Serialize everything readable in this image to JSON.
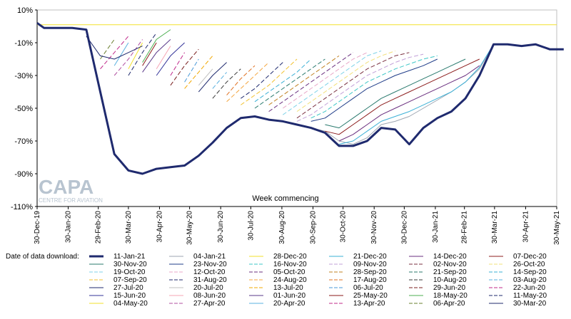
{
  "chart_data": {
    "type": "line",
    "xlabel": "Week commencing",
    "ylabel": "",
    "ylim": [
      -110,
      10
    ],
    "y_ticks": [
      "10%",
      "-10%",
      "-30%",
      "-50%",
      "-70%",
      "-90%",
      "-110%"
    ],
    "y_tick_values": [
      10,
      -10,
      -30,
      -50,
      -70,
      -90,
      -110
    ],
    "x_range": [
      "2019-12-30",
      "2021-05-31"
    ],
    "x_ticks": [
      "30-Dec-19",
      "30-Jan-20",
      "29-Feb-20",
      "30-Mar-20",
      "30-Apr-20",
      "30-May-20",
      "30-Jun-20",
      "30-Jul-20",
      "30-Aug-20",
      "30-Sep-20",
      "30-Oct-20",
      "30-Nov-20",
      "30-Dec-20",
      "30-Jan-21",
      "28-Feb-21",
      "30-Mar-21",
      "30-Apr-21",
      "30-May-21"
    ],
    "x_tick_dates": [
      "2019-12-30",
      "2020-01-30",
      "2020-02-29",
      "2020-03-30",
      "2020-04-30",
      "2020-05-30",
      "2020-06-30",
      "2020-07-30",
      "2020-08-30",
      "2020-09-30",
      "2020-10-30",
      "2020-11-30",
      "2020-12-30",
      "2021-01-30",
      "2021-02-28",
      "2021-03-30",
      "2021-04-30",
      "2021-05-31"
    ],
    "grid": false,
    "legend_title": "Date of data download:",
    "legend_position": "bottom",
    "logo_text": "CAPA",
    "logo_subtext": "CENTRE FOR AVIATION",
    "series": [
      {
        "name": "11-Jan-21",
        "color": "#1f2a6e",
        "dash": "solid",
        "width": 3,
        "x": [
          "2019-12-30",
          "2020-01-06",
          "2020-01-20",
          "2020-02-03",
          "2020-02-17",
          "2020-03-02",
          "2020-03-16",
          "2020-03-30",
          "2020-04-13",
          "2020-04-27",
          "2020-05-11",
          "2020-05-25",
          "2020-06-08",
          "2020-06-22",
          "2020-07-06",
          "2020-07-20",
          "2020-08-03",
          "2020-08-17",
          "2020-08-31",
          "2020-09-14",
          "2020-09-28",
          "2020-10-12",
          "2020-10-26",
          "2020-11-09",
          "2020-11-23",
          "2020-12-07",
          "2020-12-21",
          "2021-01-04",
          "2021-01-18",
          "2021-02-01",
          "2021-02-15",
          "2021-03-01",
          "2021-03-15",
          "2021-03-29",
          "2021-04-12",
          "2021-04-26",
          "2021-05-10",
          "2021-05-24",
          "2021-06-07"
        ],
        "y": [
          2,
          -1,
          -1,
          -1,
          -2,
          -40,
          -78,
          -88,
          -90,
          -87,
          -86,
          -85,
          -79,
          -71,
          -62,
          -56,
          -55,
          -57,
          -58,
          -60,
          -62,
          -65,
          -73,
          -73,
          -70,
          -62,
          -63,
          -72,
          -62,
          -56,
          -52,
          -44,
          -30,
          -11,
          -11,
          -12,
          -11,
          -14,
          -14
        ]
      },
      {
        "name": "04-Jan-21",
        "color": "#9ea6b2",
        "dash": "solid",
        "width": 1,
        "x": [
          "2020-09-28",
          "2020-10-12",
          "2020-10-26",
          "2020-11-09",
          "2020-11-23",
          "2020-12-07",
          "2020-12-21",
          "2021-01-04",
          "2021-01-18",
          "2021-02-01",
          "2021-02-15",
          "2021-03-01",
          "2021-03-15",
          "2021-03-29",
          "2021-04-12",
          "2021-04-26"
        ],
        "y": [
          -62,
          -64,
          -70,
          -72,
          -68,
          -60,
          -58,
          -55,
          -50,
          -45,
          -40,
          -34,
          -26,
          -11,
          -11,
          -12
        ]
      },
      {
        "name": "28-Dec-20",
        "color": "#f2e12b",
        "dash": "solid",
        "width": 1,
        "x": [
          "2019-12-30",
          "2020-06-01",
          "2020-12-01",
          "2021-05-31"
        ],
        "y": [
          1,
          1,
          1,
          1
        ]
      },
      {
        "name": "21-Dec-20",
        "color": "#3bb0d6",
        "dash": "solid",
        "width": 1,
        "x": [
          "2020-10-26",
          "2020-11-09",
          "2020-11-23",
          "2020-12-07",
          "2020-12-21",
          "2021-01-04",
          "2021-01-18",
          "2021-02-01",
          "2021-02-15",
          "2021-03-01",
          "2021-03-15",
          "2021-03-29",
          "2021-04-12"
        ],
        "y": [
          -72,
          -70,
          -64,
          -58,
          -55,
          -52,
          -48,
          -44,
          -40,
          -34,
          -25,
          -11,
          -11
        ]
      },
      {
        "name": "14-Dec-20",
        "color": "#6a2f7f",
        "dash": "solid",
        "width": 1,
        "x": [
          "2020-10-26",
          "2020-11-09",
          "2020-11-23",
          "2020-12-07",
          "2020-12-21",
          "2021-01-04",
          "2021-01-18",
          "2021-02-01",
          "2021-02-15",
          "2021-03-01",
          "2021-03-15"
        ],
        "y": [
          -70,
          -66,
          -60,
          -54,
          -50,
          -46,
          -42,
          -38,
          -34,
          -30,
          -24
        ]
      },
      {
        "name": "07-Dec-20",
        "color": "#8c1c1c",
        "dash": "solid",
        "width": 1,
        "x": [
          "2020-10-12",
          "2020-10-26",
          "2020-11-09",
          "2020-11-23",
          "2020-12-07",
          "2020-12-21",
          "2021-01-04",
          "2021-01-18",
          "2021-02-01",
          "2021-02-15",
          "2021-03-01",
          "2021-03-15"
        ],
        "y": [
          -64,
          -66,
          -60,
          -54,
          -48,
          -44,
          -40,
          -36,
          -32,
          -28,
          -24,
          -20
        ]
      },
      {
        "name": "30-Nov-20",
        "color": "#2a7a6e",
        "dash": "solid",
        "width": 1,
        "x": [
          "2020-10-12",
          "2020-10-26",
          "2020-11-09",
          "2020-11-23",
          "2020-12-07",
          "2020-12-21",
          "2021-01-04",
          "2021-01-18",
          "2021-02-01",
          "2021-02-15",
          "2021-03-01"
        ],
        "y": [
          -60,
          -62,
          -56,
          -50,
          -44,
          -40,
          -36,
          -32,
          -28,
          -24,
          -20
        ]
      },
      {
        "name": "23-Nov-20",
        "color": "#1f3c88",
        "dash": "solid",
        "width": 1,
        "x": [
          "2020-09-28",
          "2020-10-12",
          "2020-10-26",
          "2020-11-09",
          "2020-11-23",
          "2020-12-07",
          "2020-12-21",
          "2021-01-04",
          "2021-01-18",
          "2021-02-01"
        ],
        "y": [
          -58,
          -56,
          -50,
          -44,
          -38,
          -34,
          -30,
          -27,
          -24,
          -20
        ]
      },
      {
        "name": "16-Nov-20",
        "color": "#3ec7c7",
        "dash": "dash",
        "width": 1,
        "x": [
          "2020-09-28",
          "2020-10-12",
          "2020-10-26",
          "2020-11-09",
          "2020-11-23",
          "2020-12-07",
          "2020-12-21",
          "2021-01-04",
          "2021-01-18",
          "2021-02-01"
        ],
        "y": [
          -56,
          -52,
          -46,
          -40,
          -34,
          -30,
          -26,
          -23,
          -20,
          -18
        ]
      },
      {
        "name": "09-Nov-20",
        "color": "#c2a0d8",
        "dash": "dash",
        "width": 1,
        "x": [
          "2020-09-14",
          "2020-09-28",
          "2020-10-12",
          "2020-10-26",
          "2020-11-09",
          "2020-11-23",
          "2020-12-07",
          "2020-12-21",
          "2021-01-04",
          "2021-01-18"
        ],
        "y": [
          -58,
          -54,
          -48,
          -42,
          -36,
          -30,
          -26,
          -22,
          -19,
          -17
        ]
      },
      {
        "name": "02-Nov-20",
        "color": "#7a3040",
        "dash": "dash",
        "width": 1,
        "x": [
          "2020-09-14",
          "2020-09-28",
          "2020-10-12",
          "2020-10-26",
          "2020-11-09",
          "2020-11-23",
          "2020-12-07",
          "2020-12-21",
          "2021-01-04"
        ],
        "y": [
          -56,
          -50,
          -44,
          -38,
          -32,
          -26,
          -22,
          -18,
          -16
        ]
      },
      {
        "name": "26-Oct-20",
        "color": "#f2e07a",
        "dash": "dash",
        "width": 1,
        "x": [
          "2020-09-14",
          "2020-09-28",
          "2020-10-12",
          "2020-10-26",
          "2020-11-09",
          "2020-11-23",
          "2020-12-07",
          "2020-12-21"
        ],
        "y": [
          -52,
          -46,
          -40,
          -34,
          -28,
          -22,
          -18,
          -15
        ]
      },
      {
        "name": "19-Oct-20",
        "color": "#7fd3e8",
        "dash": "dash",
        "width": 1,
        "x": [
          "2020-08-31",
          "2020-09-14",
          "2020-09-28",
          "2020-10-12",
          "2020-10-26",
          "2020-11-09",
          "2020-11-23",
          "2020-12-07"
        ],
        "y": [
          -54,
          -48,
          -42,
          -36,
          -30,
          -24,
          -18,
          -15
        ]
      },
      {
        "name": "12-Oct-20",
        "color": "#e8a7c8",
        "dash": "dash",
        "width": 1,
        "x": [
          "2020-08-31",
          "2020-09-14",
          "2020-09-28",
          "2020-10-12",
          "2020-10-26",
          "2020-11-09",
          "2020-11-23"
        ],
        "y": [
          -50,
          -44,
          -38,
          -32,
          -26,
          -20,
          -16
        ]
      },
      {
        "name": "05-Oct-20",
        "color": "#6a2f7f",
        "dash": "dash",
        "width": 1,
        "x": [
          "2020-08-17",
          "2020-08-31",
          "2020-09-14",
          "2020-09-28",
          "2020-10-12",
          "2020-10-26",
          "2020-11-09"
        ],
        "y": [
          -52,
          -46,
          -40,
          -34,
          -28,
          -22,
          -16
        ]
      },
      {
        "name": "28-Sep-20",
        "color": "#c08020",
        "dash": "dash",
        "width": 1,
        "x": [
          "2020-08-17",
          "2020-08-31",
          "2020-09-14",
          "2020-09-28",
          "2020-10-12",
          "2020-10-26"
        ],
        "y": [
          -48,
          -42,
          -36,
          -30,
          -24,
          -18
        ]
      },
      {
        "name": "21-Sep-20",
        "color": "#2a7a6e",
        "dash": "dash",
        "width": 1,
        "x": [
          "2020-08-03",
          "2020-08-17",
          "2020-08-31",
          "2020-09-14",
          "2020-09-28",
          "2020-10-12"
        ],
        "y": [
          -50,
          -44,
          -38,
          -32,
          -26,
          -20
        ]
      },
      {
        "name": "14-Sep-20",
        "color": "#3bb0d6",
        "dash": "dash",
        "width": 1,
        "x": [
          "2020-08-03",
          "2020-08-17",
          "2020-08-31",
          "2020-09-14",
          "2020-09-28"
        ],
        "y": [
          -46,
          -40,
          -34,
          -28,
          -20
        ]
      },
      {
        "name": "07-Sep-20",
        "color": "#f2c230",
        "dash": "dash",
        "width": 1,
        "x": [
          "2020-07-20",
          "2020-08-03",
          "2020-08-17",
          "2020-08-31",
          "2020-09-14"
        ],
        "y": [
          -48,
          -42,
          -36,
          -28,
          -20
        ]
      },
      {
        "name": "31-Aug-20",
        "color": "#1f2a6e",
        "dash": "dash",
        "width": 1,
        "x": [
          "2020-07-20",
          "2020-08-03",
          "2020-08-17",
          "2020-08-31"
        ],
        "y": [
          -44,
          -38,
          -30,
          -22
        ]
      },
      {
        "name": "24-Aug-20",
        "color": "#f4a640",
        "dash": "dash",
        "width": 1,
        "x": [
          "2020-07-06",
          "2020-07-20",
          "2020-08-03",
          "2020-08-17"
        ],
        "y": [
          -46,
          -38,
          -30,
          -22
        ]
      },
      {
        "name": "17-Aug-20",
        "color": "#e07020",
        "dash": "dash",
        "width": 1,
        "x": [
          "2020-07-06",
          "2020-07-20",
          "2020-08-03"
        ],
        "y": [
          -42,
          -32,
          -24
        ]
      },
      {
        "name": "10-Aug-20",
        "color": "#3a3a3a",
        "dash": "dash",
        "width": 1,
        "x": [
          "2020-06-22",
          "2020-07-06",
          "2020-07-20"
        ],
        "y": [
          -44,
          -34,
          -26
        ]
      },
      {
        "name": "03-Aug-20",
        "color": "#5ab1e0",
        "dash": "dash",
        "width": 1,
        "x": [
          "2020-06-22",
          "2020-07-06"
        ],
        "y": [
          -38,
          -28
        ]
      },
      {
        "name": "27-Jul-20",
        "color": "#1f2a6e",
        "dash": "solid",
        "width": 1,
        "x": [
          "2020-06-08",
          "2020-06-22",
          "2020-07-06"
        ],
        "y": [
          -40,
          -30,
          -22
        ]
      },
      {
        "name": "20-Jul-20",
        "color": "#bfbfbf",
        "dash": "solid",
        "width": 1,
        "x": [
          "2020-06-08",
          "2020-06-22"
        ],
        "y": [
          -36,
          -26
        ]
      },
      {
        "name": "13-Jul-20",
        "color": "#f2a800",
        "dash": "dash",
        "width": 1,
        "x": [
          "2020-05-25",
          "2020-06-08",
          "2020-06-22"
        ],
        "y": [
          -38,
          -28,
          -18
        ]
      },
      {
        "name": "06-Jul-20",
        "color": "#4a9ad8",
        "dash": "dash",
        "width": 1,
        "x": [
          "2020-05-25",
          "2020-06-08"
        ],
        "y": [
          -34,
          -20
        ]
      },
      {
        "name": "29-Jun-20",
        "color": "#7a1f1f",
        "dash": "dash",
        "width": 1,
        "x": [
          "2020-05-11",
          "2020-05-25",
          "2020-06-08"
        ],
        "y": [
          -36,
          -24,
          -14
        ]
      },
      {
        "name": "22-Jun-20",
        "color": "#c0288a",
        "dash": "dash",
        "width": 1,
        "x": [
          "2020-05-11",
          "2020-05-25"
        ],
        "y": [
          -30,
          -16
        ]
      },
      {
        "name": "15-Jun-20",
        "color": "#333399",
        "dash": "solid",
        "width": 1,
        "x": [
          "2020-04-27",
          "2020-05-11",
          "2020-05-25"
        ],
        "y": [
          -30,
          -18,
          -10
        ]
      },
      {
        "name": "08-Jun-20",
        "color": "#f6a5b5",
        "dash": "solid",
        "width": 1,
        "x": [
          "2020-04-27",
          "2020-05-11"
        ],
        "y": [
          -26,
          -12
        ]
      },
      {
        "name": "01-Jun-20",
        "color": "#5a3a8a",
        "dash": "solid",
        "width": 1,
        "x": [
          "2020-04-13",
          "2020-04-27",
          "2020-05-11"
        ],
        "y": [
          -28,
          -16,
          -8
        ]
      },
      {
        "name": "25-May-20",
        "color": "#8b1a1a",
        "dash": "solid",
        "width": 1,
        "x": [
          "2020-04-13",
          "2020-04-27"
        ],
        "y": [
          -24,
          -10
        ]
      },
      {
        "name": "18-May-20",
        "color": "#4caf50",
        "dash": "solid",
        "width": 1,
        "x": [
          "2020-04-13",
          "2020-04-27",
          "2020-05-11"
        ],
        "y": [
          -22,
          -8,
          -2
        ]
      },
      {
        "name": "11-May-20",
        "color": "#1f2a6e",
        "dash": "dash",
        "width": 1,
        "x": [
          "2020-03-30",
          "2020-04-13",
          "2020-04-27"
        ],
        "y": [
          -30,
          -16,
          -4
        ]
      },
      {
        "name": "04-May-20",
        "color": "#f2e12b",
        "dash": "solid",
        "width": 1,
        "x": [
          "2020-03-30",
          "2020-04-13"
        ],
        "y": [
          -26,
          -10
        ]
      },
      {
        "name": "27-Apr-20",
        "color": "#b04fa0",
        "dash": "dash",
        "width": 1,
        "x": [
          "2020-03-16",
          "2020-03-30",
          "2020-04-13"
        ],
        "y": [
          -30,
          -20,
          -8
        ]
      },
      {
        "name": "20-Apr-20",
        "color": "#5ab1e0",
        "dash": "solid",
        "width": 1,
        "x": [
          "2020-03-16",
          "2020-03-30"
        ],
        "y": [
          -24,
          -10
        ]
      },
      {
        "name": "13-Apr-20",
        "color": "#c0288a",
        "dash": "dash",
        "width": 1,
        "x": [
          "2020-03-02",
          "2020-03-16",
          "2020-03-30"
        ],
        "y": [
          -26,
          -16,
          -6
        ]
      },
      {
        "name": "06-Apr-20",
        "color": "#6a7f2f",
        "dash": "dash",
        "width": 1,
        "x": [
          "2020-03-02",
          "2020-03-16"
        ],
        "y": [
          -20,
          -8
        ]
      },
      {
        "name": "30-Mar-20",
        "color": "#1f2a6e",
        "dash": "solid",
        "width": 1,
        "x": [
          "2020-02-17",
          "2020-03-02",
          "2020-03-16",
          "2020-03-30",
          "2020-04-13"
        ],
        "y": [
          -6,
          -18,
          -20,
          -16,
          -12
        ]
      }
    ]
  }
}
